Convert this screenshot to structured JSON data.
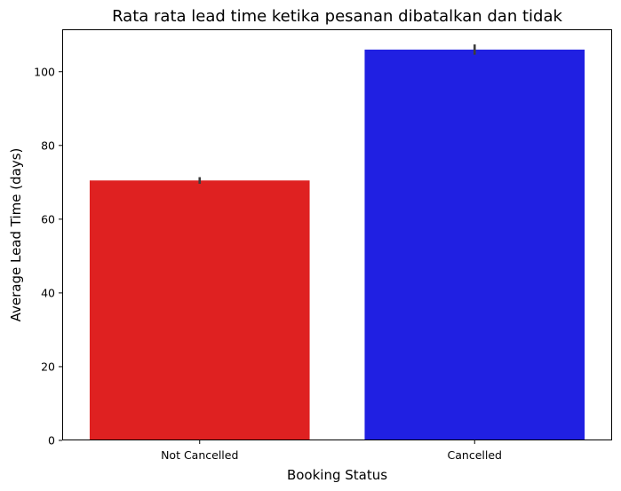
{
  "chart_data": {
    "type": "bar",
    "title": "Rata rata lead time ketika pesanan dibatalkan dan tidak",
    "xlabel": "Booking Status",
    "ylabel": "Average Lead Time (days)",
    "categories": [
      "Not Cancelled",
      "Cancelled"
    ],
    "values": [
      70.5,
      106.0
    ],
    "error_bars": [
      {
        "low": 69.6,
        "high": 71.4
      },
      {
        "low": 104.6,
        "high": 107.4
      }
    ],
    "colors": [
      "#df2121",
      "#2020e2"
    ],
    "ylim": [
      0,
      111.5
    ],
    "yticks": [
      0,
      20,
      40,
      60,
      80,
      100
    ],
    "grid": false,
    "legend": "none"
  }
}
